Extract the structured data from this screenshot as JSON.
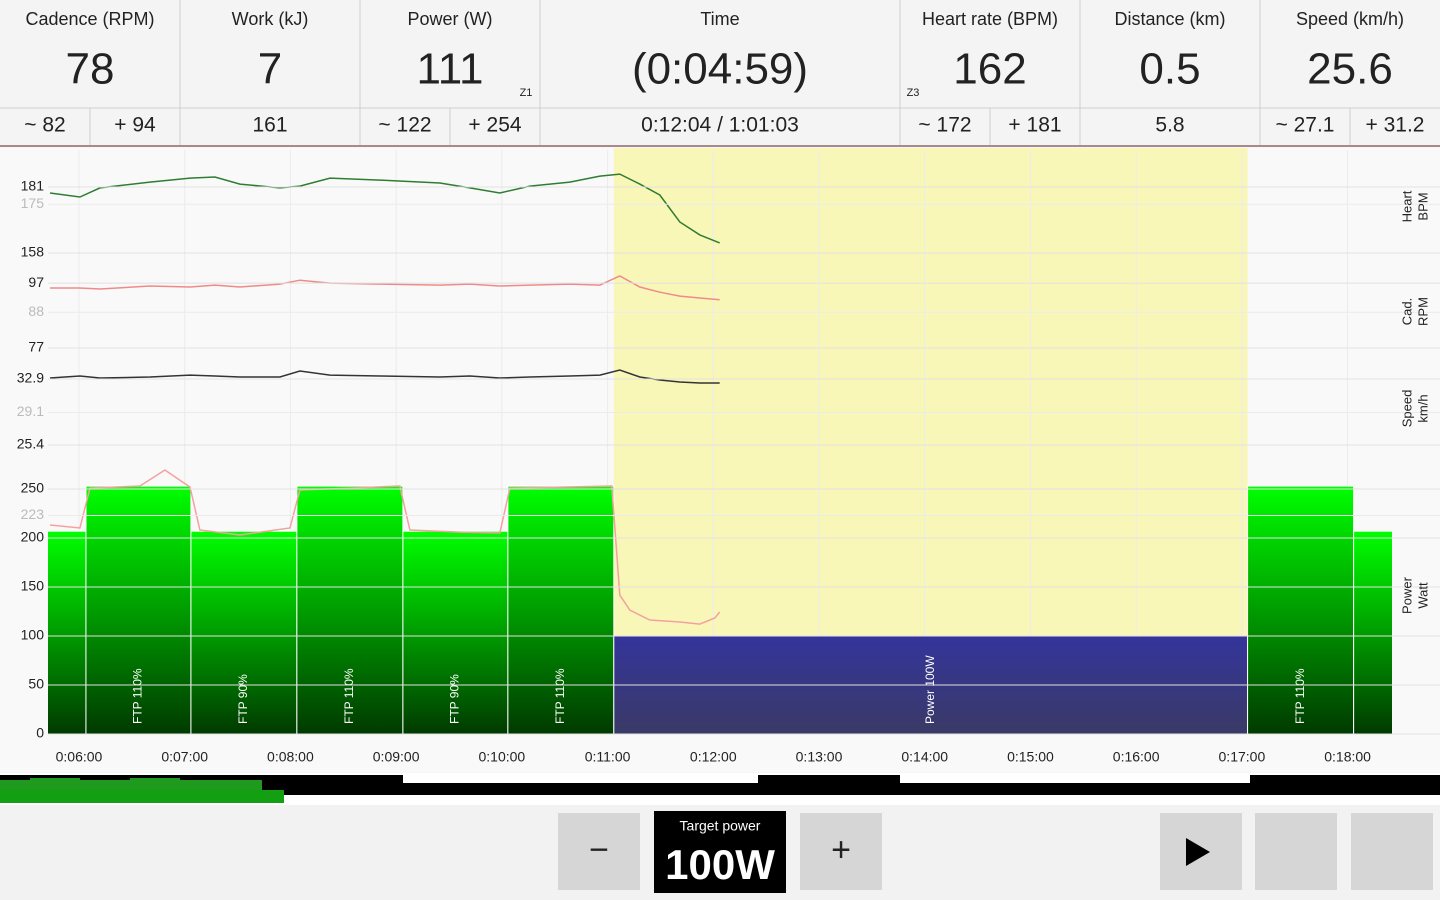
{
  "metrics": [
    {
      "label": "Cadence (RPM)",
      "value": "78",
      "sub": [
        "~ 82",
        "+ 94"
      ]
    },
    {
      "label": "Work (kJ)",
      "value": "7",
      "sub": [
        "161"
      ]
    },
    {
      "label": "Power (W)",
      "value": "111",
      "zone": "Z1",
      "sub": [
        "~ 122",
        "+ 254"
      ]
    },
    {
      "label": "Time",
      "value": "(0:04:59)",
      "sub": [
        "0:12:04 / 1:01:03"
      ]
    },
    {
      "label": "Heart rate (BPM)",
      "value": "162",
      "zone": "Z3",
      "sub": [
        "~ 172",
        "+ 181"
      ]
    },
    {
      "label": "Distance (km)",
      "value": "0.5",
      "sub": [
        "5.8"
      ]
    },
    {
      "label": "Speed (km/h)",
      "value": "25.6",
      "sub": [
        "~ 27.1",
        "+ 31.2"
      ]
    }
  ],
  "chart_data": {
    "type": "workout",
    "xlim": [
      5.707,
      18.42
    ],
    "xticks": [
      {
        "value": 6,
        "label": "0:06:00"
      },
      {
        "value": 7,
        "label": "0:07:00"
      },
      {
        "value": 8,
        "label": "0:08:00"
      },
      {
        "value": 9,
        "label": "0:09:00"
      },
      {
        "value": 10,
        "label": "0:10:00"
      },
      {
        "value": 11,
        "label": "0:11:00"
      },
      {
        "value": 12,
        "label": "0:12:00"
      },
      {
        "value": 13,
        "label": "0:13:00"
      },
      {
        "value": 14,
        "label": "0:14:00"
      },
      {
        "value": 15,
        "label": "0:15:00"
      },
      {
        "value": 16,
        "label": "0:16:00"
      },
      {
        "value": 17,
        "label": "0:17:00"
      },
      {
        "value": 18,
        "label": "0:18:00"
      }
    ],
    "line_x": [
      5.726,
      6.009,
      6.199,
      6.671,
      7.05,
      7.286,
      7.522,
      7.901,
      8.09,
      8.374,
      8.847,
      9.414,
      9.697,
      9.981,
      10.265,
      10.643,
      10.927,
      11.116,
      11.305,
      11.494,
      11.683,
      11.872,
      12.061
    ],
    "panels": [
      {
        "name": [
          "Heart",
          "BPM"
        ],
        "ylim": [
          154.5,
          193.9
        ],
        "yticks": [
          181,
          158
        ],
        "avg_tick": 175,
        "color": "#2e7d32",
        "values": [
          178.9,
          177.5,
          180.7,
          182.7,
          184.1,
          184.5,
          182,
          180.7,
          181.3,
          184.1,
          183.4,
          182.4,
          180.7,
          178.9,
          181.3,
          182.7,
          184.8,
          185.5,
          182,
          178.2,
          168.8,
          164.3,
          161.5
        ]
      },
      {
        "name": [
          "Cad.",
          "RPM"
        ],
        "ylim": [
          73.3,
          103.2
        ],
        "yticks": [
          97,
          77
        ],
        "avg_tick": 88,
        "color": "#f08a8a",
        "values": [
          95.5,
          95.5,
          95.2,
          96.1,
          95.8,
          96.4,
          95.8,
          96.7,
          97.9,
          97,
          96.7,
          96.4,
          96.7,
          96.1,
          96.4,
          96.7,
          96.4,
          99.2,
          95.8,
          94.2,
          93,
          92.4,
          91.9
        ]
      },
      {
        "name": [
          "Speed",
          "km/h"
        ],
        "ylim": [
          24.04,
          35.06
        ],
        "yticks": [
          32.9,
          25.4
        ],
        "avg_tick": 29.1,
        "color": "#333333",
        "values": [
          33.01,
          33.24,
          33.01,
          33.13,
          33.35,
          33.24,
          33.13,
          33.13,
          33.81,
          33.35,
          33.24,
          33.13,
          33.24,
          33.01,
          33.13,
          33.24,
          33.35,
          33.92,
          33.13,
          32.79,
          32.56,
          32.45,
          32.45
        ]
      },
      {
        "name": [
          "Power",
          "Watt"
        ],
        "ylim": [
          0,
          282.7
        ],
        "yticks": [
          250,
          200,
          150,
          100,
          50,
          0
        ],
        "avg_tick": 223,
        "color": "#f5a0a0",
        "x": [
          5.726,
          6.009,
          6.104,
          6.577,
          6.813,
          7.05,
          7.144,
          7.522,
          7.995,
          8.09,
          8.563,
          9.035,
          9.13,
          9.603,
          9.981,
          10.076,
          10.548,
          11.04,
          11.116,
          11.21,
          11.399,
          11.683,
          11.872,
          12.014,
          12.061
        ],
        "values": [
          213.3,
          210.2,
          251,
          253.1,
          269.4,
          252,
          208.2,
          203.1,
          210.2,
          249,
          251,
          253.1,
          208.2,
          206.1,
          205.1,
          251,
          252,
          253.1,
          141.8,
          126.5,
          116.3,
          114.3,
          112.2,
          118.4,
          124.5
        ]
      }
    ],
    "intervals": [
      {
        "start": 5.066,
        "end": 6.066,
        "power": 207
      },
      {
        "start": 6.066,
        "end": 7.059,
        "power": 253,
        "label": "FTP 110%"
      },
      {
        "start": 7.059,
        "end": 8.061,
        "power": 207,
        "label": "FTP 90%"
      },
      {
        "start": 8.061,
        "end": 9.064,
        "power": 253,
        "label": "FTP 110%"
      },
      {
        "start": 9.064,
        "end": 10.057,
        "power": 207,
        "label": "FTP 90%"
      },
      {
        "start": 10.057,
        "end": 11.059,
        "power": 253,
        "label": "FTP 110%"
      },
      {
        "start": 11.059,
        "end": 17.054,
        "power": 100,
        "label": "Power 100W"
      },
      {
        "start": 17.054,
        "end": 18.057,
        "power": 253,
        "label": "FTP 110%"
      },
      {
        "start": 18.057,
        "end": 19.06,
        "power": 207
      }
    ],
    "current_interval": 6,
    "interval_color": [
      "#00ff00",
      "#003a00"
    ],
    "current_color": [
      "#34349c",
      "#3a3a66"
    ],
    "highlight_color": "#f9f7b8"
  },
  "controls": {
    "minus": "−",
    "target_label": "Target power",
    "target_value": "100W",
    "plus": "+"
  }
}
